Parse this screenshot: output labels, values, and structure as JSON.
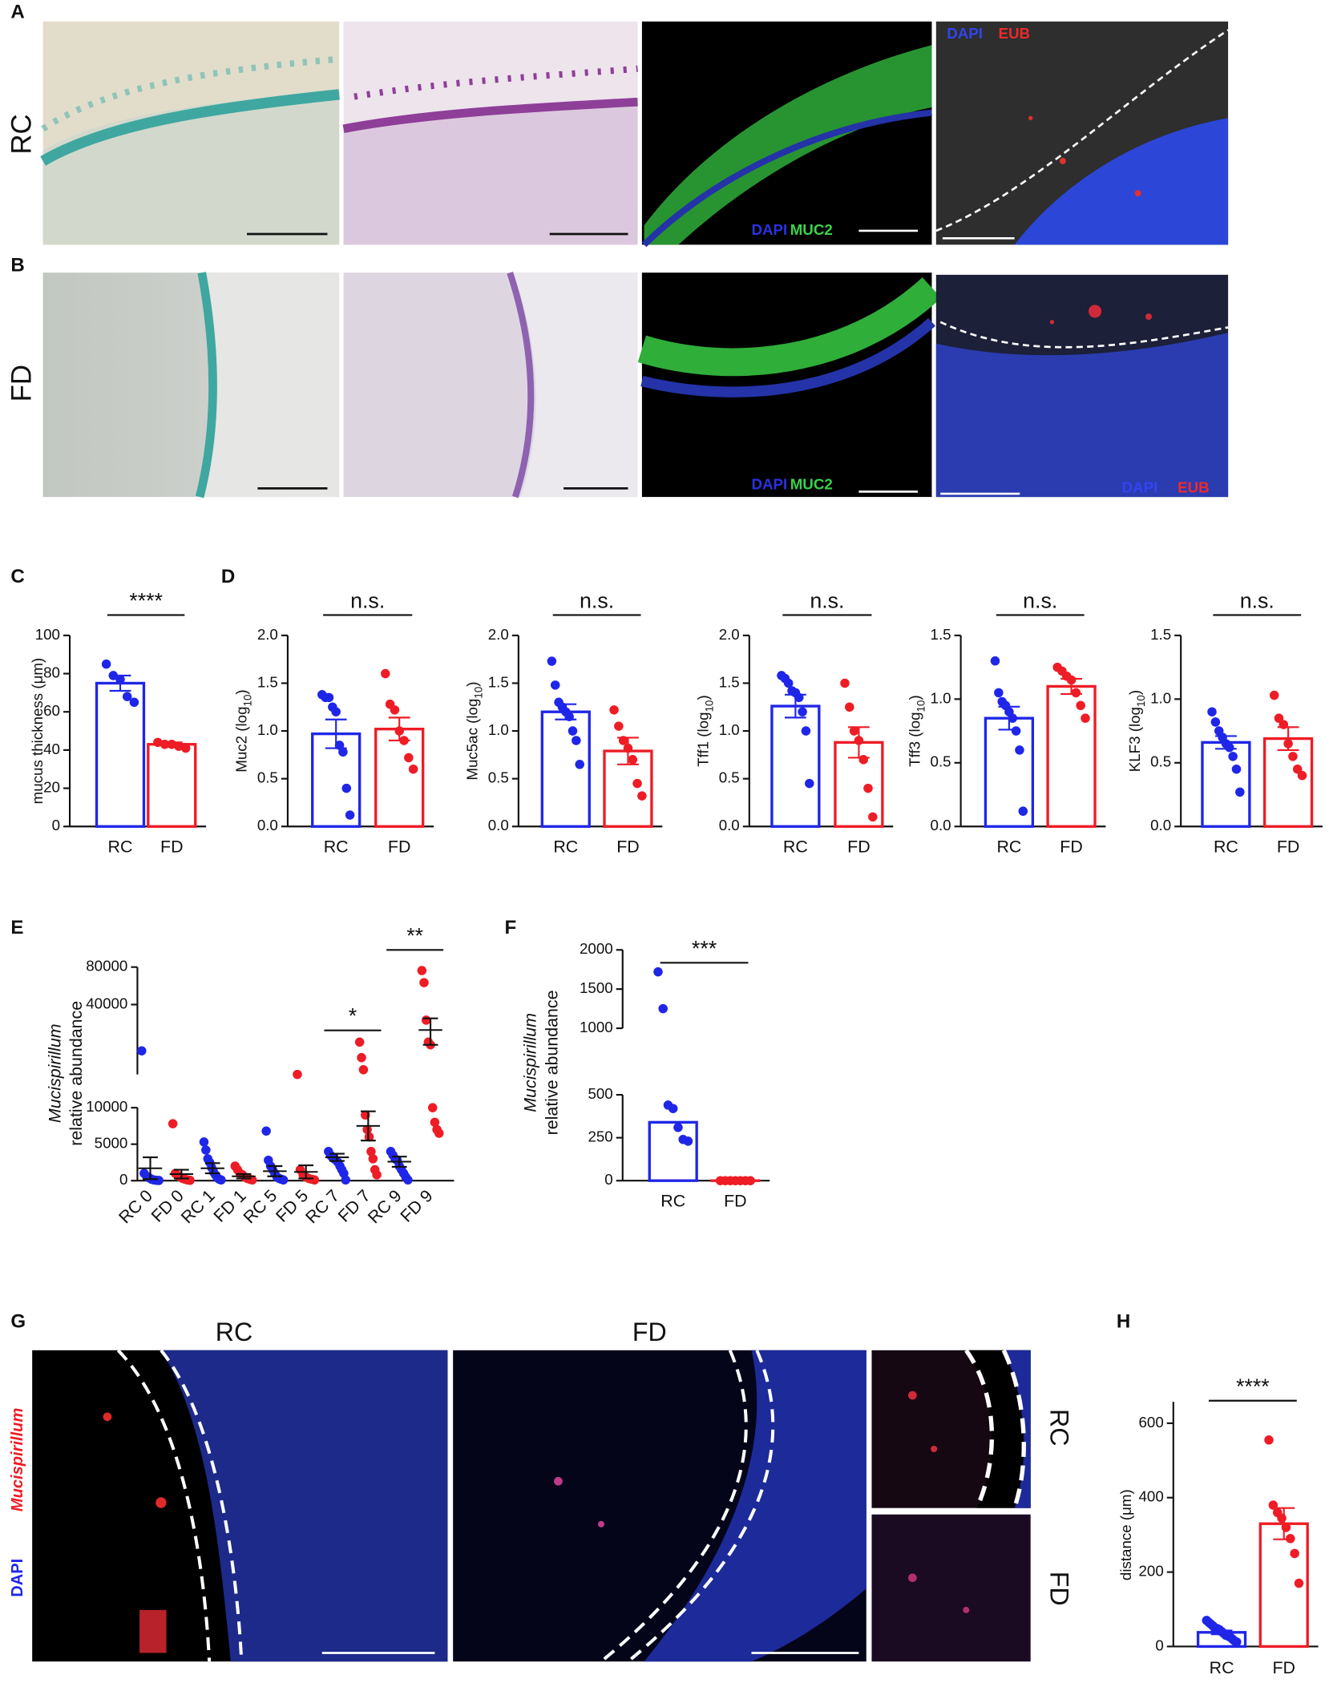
{
  "panel_labels": {
    "a": "A",
    "b": "B",
    "g": "G"
  },
  "micrographs": {
    "row_labels": [
      "RC",
      "FD"
    ],
    "a3": [
      "DAPI",
      "MUC2"
    ],
    "a4": [
      "DAPI",
      "EUB"
    ],
    "b3": [
      "DAPI",
      "MUC2"
    ],
    "b4": [
      "DAPI",
      "EUB"
    ]
  },
  "panel_g": {
    "titles": [
      "RC",
      "FD"
    ],
    "insets": [
      "RC",
      "FD"
    ],
    "stain": [
      "Mucispirillum",
      "DAPI"
    ]
  },
  "chart_data": [
    {
      "type": "bar",
      "panel": "C",
      "ylabel": [
        "mucus thickness (μm)"
      ],
      "categories": [
        "RC",
        "FD"
      ],
      "colors": [
        "#1f26e8",
        "#ee1c25"
      ],
      "values": [
        75,
        43
      ],
      "errors": [
        4,
        1
      ],
      "points": [
        [
          85,
          79,
          77,
          68,
          65
        ],
        [
          44,
          43,
          43,
          42,
          41
        ]
      ],
      "ylim": [
        0,
        100
      ],
      "yticks": [
        0,
        20,
        40,
        60,
        80,
        100
      ],
      "significance": [
        null,
        "****"
      ]
    },
    {
      "type": "bar",
      "panel": "D",
      "ylabel": [
        "Muc2 (log",
        "10",
        ")"
      ],
      "categories": [
        "RC",
        "FD"
      ],
      "colors": [
        "#1f26e8",
        "#ee1c25"
      ],
      "values": [
        0.97,
        1.02
      ],
      "errors": [
        0.15,
        0.12
      ],
      "points": [
        [
          1.38,
          1.35,
          1.35,
          1.25,
          1.2,
          0.85,
          0.78,
          0.4,
          0.12
        ],
        [
          1.6,
          1.28,
          1.22,
          1.0,
          0.9,
          0.72,
          0.6
        ]
      ],
      "ylim": [
        0,
        2
      ],
      "yticks": [
        {
          "value": 0,
          "label": "0.0"
        },
        0.5,
        {
          "value": 1,
          "label": "1.0"
        },
        1.5,
        {
          "value": 2,
          "label": "2.0"
        }
      ],
      "significance": [
        null,
        "n.s."
      ]
    },
    {
      "type": "bar",
      "ylabel": [
        "Muc5ac (log",
        "10",
        ")"
      ],
      "categories": [
        "RC",
        "FD"
      ],
      "colors": [
        "#1f26e8",
        "#ee1c25"
      ],
      "values": [
        1.2,
        0.79
      ],
      "errors": [
        0.08,
        0.14
      ],
      "points": [
        [
          1.73,
          1.48,
          1.3,
          1.25,
          1.2,
          1.15,
          1.0,
          0.9,
          0.65
        ],
        [
          1.22,
          1.05,
          0.9,
          0.82,
          0.7,
          0.45,
          0.32
        ]
      ],
      "ylim": [
        0,
        2
      ],
      "yticks": [
        {
          "value": 0,
          "label": "0.0"
        },
        0.5,
        {
          "value": 1,
          "label": "1.0"
        },
        1.5,
        {
          "value": 2,
          "label": "2.0"
        }
      ],
      "significance": [
        null,
        "n.s."
      ]
    },
    {
      "type": "bar",
      "ylabel": [
        "Tff1 (log",
        "10",
        ")"
      ],
      "categories": [
        "RC",
        "FD"
      ],
      "colors": [
        "#1f26e8",
        "#ee1c25"
      ],
      "values": [
        1.26,
        0.88
      ],
      "errors": [
        0.12,
        0.16
      ],
      "points": [
        [
          1.58,
          1.55,
          1.5,
          1.42,
          1.4,
          1.35,
          1.2,
          1.0,
          0.45
        ],
        [
          1.5,
          1.25,
          1.0,
          0.9,
          0.7,
          0.4,
          0.1
        ]
      ],
      "ylim": [
        0,
        2
      ],
      "yticks": [
        {
          "value": 0,
          "label": "0.0"
        },
        0.5,
        {
          "value": 1,
          "label": "1.0"
        },
        1.5,
        {
          "value": 2,
          "label": "2.0"
        }
      ],
      "significance": [
        null,
        "n.s."
      ]
    },
    {
      "type": "bar",
      "ylabel": [
        "Tff3 (log",
        "10",
        ")"
      ],
      "categories": [
        "RC",
        "FD"
      ],
      "colors": [
        "#1f26e8",
        "#ee1c25"
      ],
      "values": [
        0.85,
        1.1
      ],
      "errors": [
        0.09,
        0.06
      ],
      "points": [
        [
          1.3,
          1.05,
          0.98,
          0.95,
          0.9,
          0.85,
          0.75,
          0.6,
          0.12
        ],
        [
          1.25,
          1.22,
          1.18,
          1.15,
          1.05,
          0.95,
          0.85
        ]
      ],
      "ylim": [
        0,
        1.5
      ],
      "yticks": [
        {
          "value": 0,
          "label": "0.0"
        },
        0.5,
        {
          "value": 1,
          "label": "1.0"
        },
        1.5
      ],
      "significance": [
        null,
        "n.s."
      ]
    },
    {
      "type": "bar",
      "ylabel": [
        "KLF3 (log",
        "10",
        ")"
      ],
      "categories": [
        "RC",
        "FD"
      ],
      "colors": [
        "#1f26e8",
        "#ee1c25"
      ],
      "values": [
        0.66,
        0.69
      ],
      "errors": [
        0.05,
        0.09
      ],
      "points": [
        [
          0.9,
          0.82,
          0.75,
          0.7,
          0.65,
          0.62,
          0.55,
          0.45,
          0.27
        ],
        [
          1.03,
          0.85,
          0.8,
          0.65,
          0.55,
          0.45,
          0.4
        ]
      ],
      "ylim": [
        0,
        1.5
      ],
      "yticks": [
        {
          "value": 0,
          "label": "0.0"
        },
        0.5,
        {
          "value": 1,
          "label": "1.0"
        },
        1.5
      ],
      "significance": [
        null,
        "n.s."
      ]
    },
    {
      "type": "scatter",
      "panel": "E",
      "ylabel": [
        "Mucispirillum",
        "relative abundance"
      ],
      "categories": [
        "RC 0",
        "FD 0",
        "RC 1",
        "FD 1",
        "RC 5",
        "FD 5",
        "RC 7",
        "FD 7",
        "RC 9",
        "FD 9"
      ],
      "colors": [
        "#1f26e8",
        "#ee1c25",
        "#1f26e8",
        "#ee1c25",
        "#1f26e8",
        "#ee1c25",
        "#1f26e8",
        "#ee1c25",
        "#1f26e8",
        "#ee1c25"
      ],
      "values": [
        1700,
        900,
        1700,
        600,
        1300,
        1200,
        3200,
        7500,
        2600,
        25000
      ],
      "errors": [
        1500,
        600,
        700,
        300,
        700,
        900,
        500,
        2000,
        700,
        6000
      ],
      "points": [
        [
          17000,
          1000,
          600,
          400,
          200,
          100,
          50,
          30
        ],
        [
          7800,
          1000,
          700,
          500,
          300,
          200,
          100,
          50
        ],
        [
          5300,
          4200,
          3000,
          2500,
          1800,
          1200,
          800,
          400,
          200,
          100
        ],
        [
          2000,
          1500,
          1000,
          800,
          500,
          300,
          200,
          100
        ],
        [
          6800,
          2800,
          2000,
          1500,
          1000,
          500,
          300,
          200,
          100
        ],
        [
          11000,
          1500,
          800,
          500,
          300,
          200,
          100
        ],
        [
          4000,
          3500,
          3200,
          3000,
          2800,
          2500,
          2000,
          1500,
          1000,
          100
        ],
        [
          20000,
          15000,
          12000,
          9000,
          7000,
          6000,
          4000,
          3000,
          1500,
          800
        ],
        [
          4000,
          3500,
          3000,
          2800,
          2000,
          1500,
          1000,
          500,
          100
        ],
        [
          75000,
          60000,
          30000,
          20000,
          19000,
          10000,
          8000,
          7000,
          6500
        ]
      ],
      "y_segments": [
        {
          "ylim": [
            0,
            10000
          ],
          "yticks": [
            0,
            5000,
            10000
          ]
        },
        {
          "ylim": [
            11000,
            80000
          ],
          "yticks": [
            40000,
            80000
          ],
          "log": true
        }
      ],
      "significance": [
        null,
        null,
        null,
        null,
        null,
        null,
        null,
        "*",
        null,
        "**"
      ]
    },
    {
      "type": "bar",
      "panel": "F",
      "ylabel": [
        "Mucispirillum",
        "relative abundance"
      ],
      "categories": [
        "RC",
        "FD"
      ],
      "colors": [
        "#1f26e8",
        "#ee1c25"
      ],
      "values": [
        340,
        0
      ],
      "points": [
        [
          1720,
          1250,
          440,
          420,
          310,
          240,
          230
        ],
        [
          0,
          0,
          0,
          0,
          0,
          0,
          0
        ]
      ],
      "y_segments": [
        {
          "ylim": [
            0,
            500
          ],
          "yticks": [
            0,
            250,
            500
          ]
        },
        {
          "ylim": [
            1000,
            2000
          ],
          "yticks": [
            1000,
            1500,
            2000
          ]
        }
      ],
      "significance": [
        null,
        "***"
      ]
    },
    {
      "type": "bar",
      "panel": "H",
      "ylabel": [
        "distance (μm)"
      ],
      "categories": [
        "RC",
        "FD"
      ],
      "colors": [
        "#1f26e8",
        "#ee1c25"
      ],
      "values": [
        38,
        330
      ],
      "errors": [
        5,
        42
      ],
      "points": [
        [
          70,
          65,
          60,
          55,
          50,
          48,
          45,
          40,
          35,
          30,
          28,
          25,
          20,
          15,
          12
        ],
        [
          555,
          380,
          360,
          345,
          320,
          290,
          250,
          170
        ]
      ],
      "ylim": [
        0,
        600
      ],
      "yticks": [
        0,
        200,
        400,
        600
      ],
      "significance": [
        null,
        "****"
      ]
    }
  ]
}
